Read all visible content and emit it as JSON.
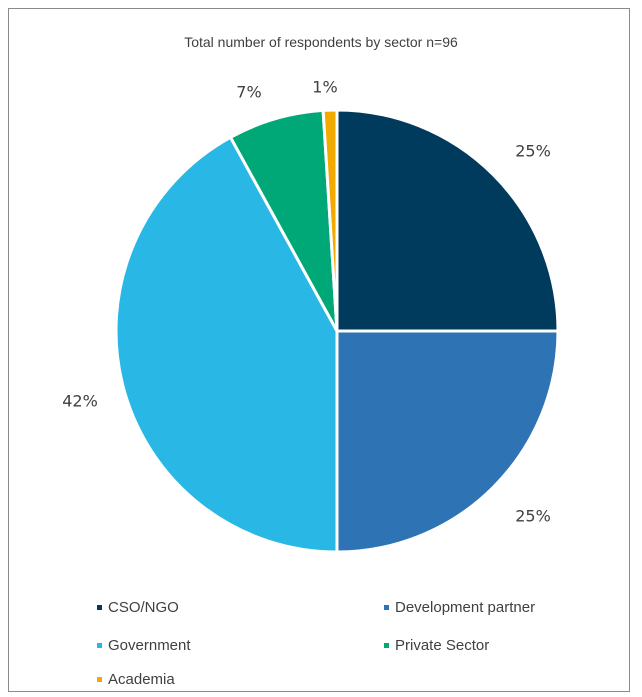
{
  "chart_data": {
    "type": "pie",
    "title": "Total number of respondents by sector n=96",
    "slices": [
      {
        "name": "CSO/NGO",
        "value": 25,
        "label": "25%",
        "color": "#003A5D"
      },
      {
        "name": "Development partner",
        "value": 25,
        "label": "25%",
        "color": "#2E74B5"
      },
      {
        "name": "Government",
        "value": 42,
        "label": "42%",
        "color": "#29B8E5"
      },
      {
        "name": "Private Sector",
        "value": 7,
        "label": "7%",
        "color": "#00A878"
      },
      {
        "name": "Academia",
        "value": 1,
        "label": "1%",
        "color": "#F2A900"
      }
    ],
    "legend_placement": "bottom"
  }
}
